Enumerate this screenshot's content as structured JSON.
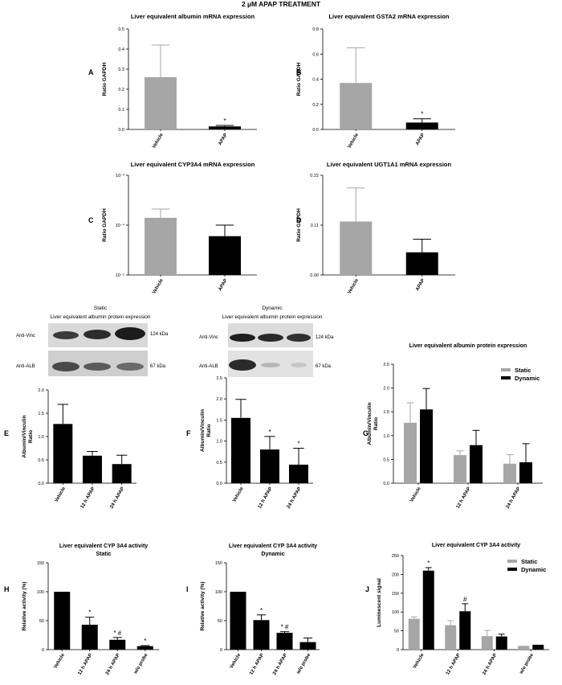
{
  "figure_title": "2 µM APAP TREATMENT",
  "colors": {
    "gray": "#a6a6a6",
    "black": "#000000"
  },
  "blots": [
    {
      "id": "static",
      "title1": "Static",
      "title2": "Liver equivalent  albumin  protein expression",
      "rows": [
        {
          "label": "Anti-Vinc",
          "kda": "124  kDa"
        },
        {
          "label": "Anti-ALB",
          "kda": "67 kDa"
        }
      ]
    },
    {
      "id": "dynamic",
      "title1": "Dynamic",
      "title2": "Liver equivalent  albumin  protein expression",
      "rows": [
        {
          "label": "Anti-Vinc",
          "kda": "124  kDa"
        },
        {
          "label": "Anti-ALB",
          "kda": "67 kDa"
        }
      ]
    }
  ],
  "chart_data": [
    {
      "panel": "A",
      "type": "bar",
      "title": "Liver equivalent albumin mRNA expression",
      "subtitle": "",
      "ylabel": "Ratio GAPDH",
      "ylabel2": "",
      "scale": "linear",
      "ylim": [
        0,
        0.5
      ],
      "yticks": [
        "0.0",
        "0.1",
        "0.2",
        "0.3",
        "0.4",
        "0.5"
      ],
      "tickvals": [
        0,
        0.1,
        0.2,
        0.3,
        0.4,
        0.5
      ],
      "categories": [
        "Vehicle",
        "APAP"
      ],
      "series": [
        {
          "name": "",
          "color": "#a6a6a6",
          "cat_colors": [
            "#a6a6a6",
            "#000000"
          ],
          "values": [
            0.26,
            0.015
          ],
          "errors": [
            0.16,
            0.005
          ],
          "marks": [
            "",
            "*"
          ]
        }
      ]
    },
    {
      "panel": "B",
      "type": "bar",
      "title": "Liver equivalent GSTA2 mRNA expression",
      "subtitle": "",
      "ylabel": "Ratio GAPDH",
      "ylabel2": "",
      "scale": "linear",
      "ylim": [
        0,
        0.8
      ],
      "yticks": [
        "0.0",
        "0.2",
        "0.4",
        "0.6",
        "0.8"
      ],
      "tickvals": [
        0,
        0.2,
        0.4,
        0.6,
        0.8
      ],
      "categories": [
        "Vehicle",
        "APAP"
      ],
      "series": [
        {
          "name": "",
          "color": "#a6a6a6",
          "cat_colors": [
            "#a6a6a6",
            "#000000"
          ],
          "values": [
            0.37,
            0.055
          ],
          "errors": [
            0.28,
            0.03
          ],
          "marks": [
            "",
            "*"
          ]
        }
      ]
    },
    {
      "panel": "C",
      "type": "bar",
      "title": "Liver equivalent CYP3A4 mRNA expression",
      "subtitle": "",
      "ylabel": "Ratio GAPDH",
      "ylabel2": "",
      "scale": "log",
      "ylim": [
        1e-05,
        0.001
      ],
      "yticks": [
        "10⁻³",
        "10⁻⁴",
        "10⁻⁵"
      ],
      "tickvals": [
        0.001,
        0.0001,
        1e-05
      ],
      "categories": [
        "Vehicle",
        "APAP"
      ],
      "series": [
        {
          "name": "",
          "color": "#a6a6a6",
          "cat_colors": [
            "#a6a6a6",
            "#000000"
          ],
          "values": [
            0.00014,
            6e-05
          ],
          "errors": [
            7e-05,
            4e-05
          ],
          "marks": [
            "",
            ""
          ]
        }
      ]
    },
    {
      "panel": "D",
      "type": "bar",
      "title": "Liver equivalent UGT1A1 mRNA expression",
      "subtitle": "",
      "ylabel": "Ratio GAPDH",
      "ylabel2": "",
      "scale": "linear",
      "ylim": [
        0,
        0.22
      ],
      "yticks": [
        "0.00",
        "0.11",
        "0.22"
      ],
      "tickvals": [
        0,
        0.11,
        0.22
      ],
      "categories": [
        "Vehicle",
        "APAP"
      ],
      "series": [
        {
          "name": "",
          "color": "#a6a6a6",
          "cat_colors": [
            "#a6a6a6",
            "#000000"
          ],
          "values": [
            0.118,
            0.05
          ],
          "errors": [
            0.074,
            0.029
          ],
          "marks": [
            "",
            ""
          ]
        }
      ]
    },
    {
      "panel": "E",
      "type": "bar",
      "title": "",
      "subtitle": "",
      "ylabel": "Albumin/Vinculin",
      "ylabel2": "Ratio",
      "scale": "linear",
      "ylim": [
        0,
        2.0
      ],
      "yticks": [
        "0.0",
        "0.5",
        "1.0",
        "1.5",
        "2.0"
      ],
      "tickvals": [
        0,
        0.5,
        1,
        1.5,
        2
      ],
      "categories": [
        "Vehicle",
        "12 h APAP",
        "24 h APAP"
      ],
      "series": [
        {
          "name": "",
          "color": "#000000",
          "cat_colors": [],
          "values": [
            1.27,
            0.59,
            0.41
          ],
          "errors": [
            0.42,
            0.09,
            0.19
          ],
          "marks": [
            "",
            "",
            ""
          ]
        }
      ]
    },
    {
      "panel": "F",
      "type": "bar",
      "title": "",
      "subtitle": "",
      "ylabel": "Albumin/Vinculin",
      "ylabel2": "Ratio",
      "scale": "linear",
      "ylim": [
        0,
        2.5
      ],
      "yticks": [
        "0.0",
        "0.5",
        "1.0",
        "1.5",
        "2.0",
        "2.5"
      ],
      "tickvals": [
        0,
        0.5,
        1,
        1.5,
        2,
        2.5
      ],
      "categories": [
        "Vehicle",
        "12 h APAP",
        "24 h APAP"
      ],
      "series": [
        {
          "name": "",
          "color": "#000000",
          "cat_colors": [],
          "values": [
            1.55,
            0.8,
            0.44
          ],
          "errors": [
            0.44,
            0.31,
            0.39
          ],
          "marks": [
            "",
            "*",
            "*"
          ]
        }
      ]
    },
    {
      "panel": "G",
      "type": "bar",
      "title": "Liver equivalent albumin protein expression",
      "subtitle": "",
      "ylabel": "Albumin/Vinculin",
      "ylabel2": "Ratio",
      "scale": "linear",
      "ylim": [
        0,
        2.5
      ],
      "yticks": [
        "0.0",
        "0.5",
        "1.0",
        "1.5",
        "2.0",
        "2.5"
      ],
      "tickvals": [
        0,
        0.5,
        1,
        1.5,
        2,
        2.5
      ],
      "categories": [
        "Vehicle",
        "12 h APAP",
        "24 h APAP"
      ],
      "legend": "top-right",
      "series": [
        {
          "name": "Static",
          "color": "#a6a6a6",
          "cat_colors": [],
          "values": [
            1.27,
            0.59,
            0.41
          ],
          "errors": [
            0.42,
            0.09,
            0.19
          ],
          "marks": [
            "",
            "",
            ""
          ]
        },
        {
          "name": "Dynamic",
          "color": "#000000",
          "cat_colors": [],
          "values": [
            1.55,
            0.8,
            0.44
          ],
          "errors": [
            0.44,
            0.31,
            0.39
          ],
          "marks": [
            "",
            "",
            ""
          ]
        }
      ]
    },
    {
      "panel": "H",
      "type": "bar",
      "title": "Liver equivalent CYP 3A4 activity",
      "subtitle": "Static",
      "ylabel": "Relative activity (%)",
      "ylabel2": "",
      "scale": "linear",
      "ylim": [
        0,
        150
      ],
      "yticks": [
        "0",
        "50",
        "100",
        "150"
      ],
      "tickvals": [
        0,
        50,
        100,
        150
      ],
      "categories": [
        "Vehicle",
        "12 h APAP",
        "24 h APAP",
        "w/o probe"
      ],
      "series": [
        {
          "name": "",
          "color": "#000000",
          "cat_colors": [],
          "values": [
            100,
            43,
            17,
            6
          ],
          "errors": [
            0,
            13,
            4,
            1
          ],
          "marks": [
            "",
            "*",
            "* #",
            "*"
          ]
        }
      ]
    },
    {
      "panel": "I",
      "type": "bar",
      "title": "Liver equivalent CYP 3A4 activity",
      "subtitle": "Dynamic",
      "ylabel": "Relative activity (%)",
      "ylabel2": "",
      "scale": "linear",
      "ylim": [
        0,
        150
      ],
      "yticks": [
        "0",
        "50",
        "100",
        "150"
      ],
      "tickvals": [
        0,
        50,
        100,
        150
      ],
      "categories": [
        "Vehicle",
        "12 h APAP",
        "24 h APAP",
        "w/o probe"
      ],
      "series": [
        {
          "name": "",
          "color": "#000000",
          "cat_colors": [],
          "values": [
            100,
            51,
            29,
            13
          ],
          "errors": [
            0,
            9,
            2,
            7
          ],
          "marks": [
            "",
            "*",
            "* #",
            ""
          ]
        }
      ]
    },
    {
      "panel": "J",
      "type": "bar",
      "title": "Liver equivalent CYP 3A4 activity",
      "subtitle": "",
      "ylabel": "Luminescent signal",
      "ylabel2": "",
      "scale": "linear",
      "ylim": [
        0,
        250
      ],
      "yticks": [
        "0",
        "50",
        "100",
        "150",
        "200",
        "250"
      ],
      "tickvals": [
        0,
        50,
        100,
        150,
        200,
        250
      ],
      "categories": [
        "Vehicle",
        "12 h APAP",
        "24 h APAP",
        "w/o probe"
      ],
      "legend": "top-right",
      "series": [
        {
          "name": "Static",
          "color": "#a6a6a6",
          "cat_colors": [],
          "values": [
            82,
            65,
            36,
            10
          ],
          "errors": [
            5,
            12,
            15,
            0
          ],
          "marks": [
            "",
            "",
            "",
            ""
          ]
        },
        {
          "name": "Dynamic",
          "color": "#000000",
          "cat_colors": [],
          "values": [
            210,
            102,
            35,
            13
          ],
          "errors": [
            8,
            20,
            6,
            0
          ],
          "marks": [
            "*",
            "#",
            "",
            ""
          ]
        }
      ]
    }
  ]
}
